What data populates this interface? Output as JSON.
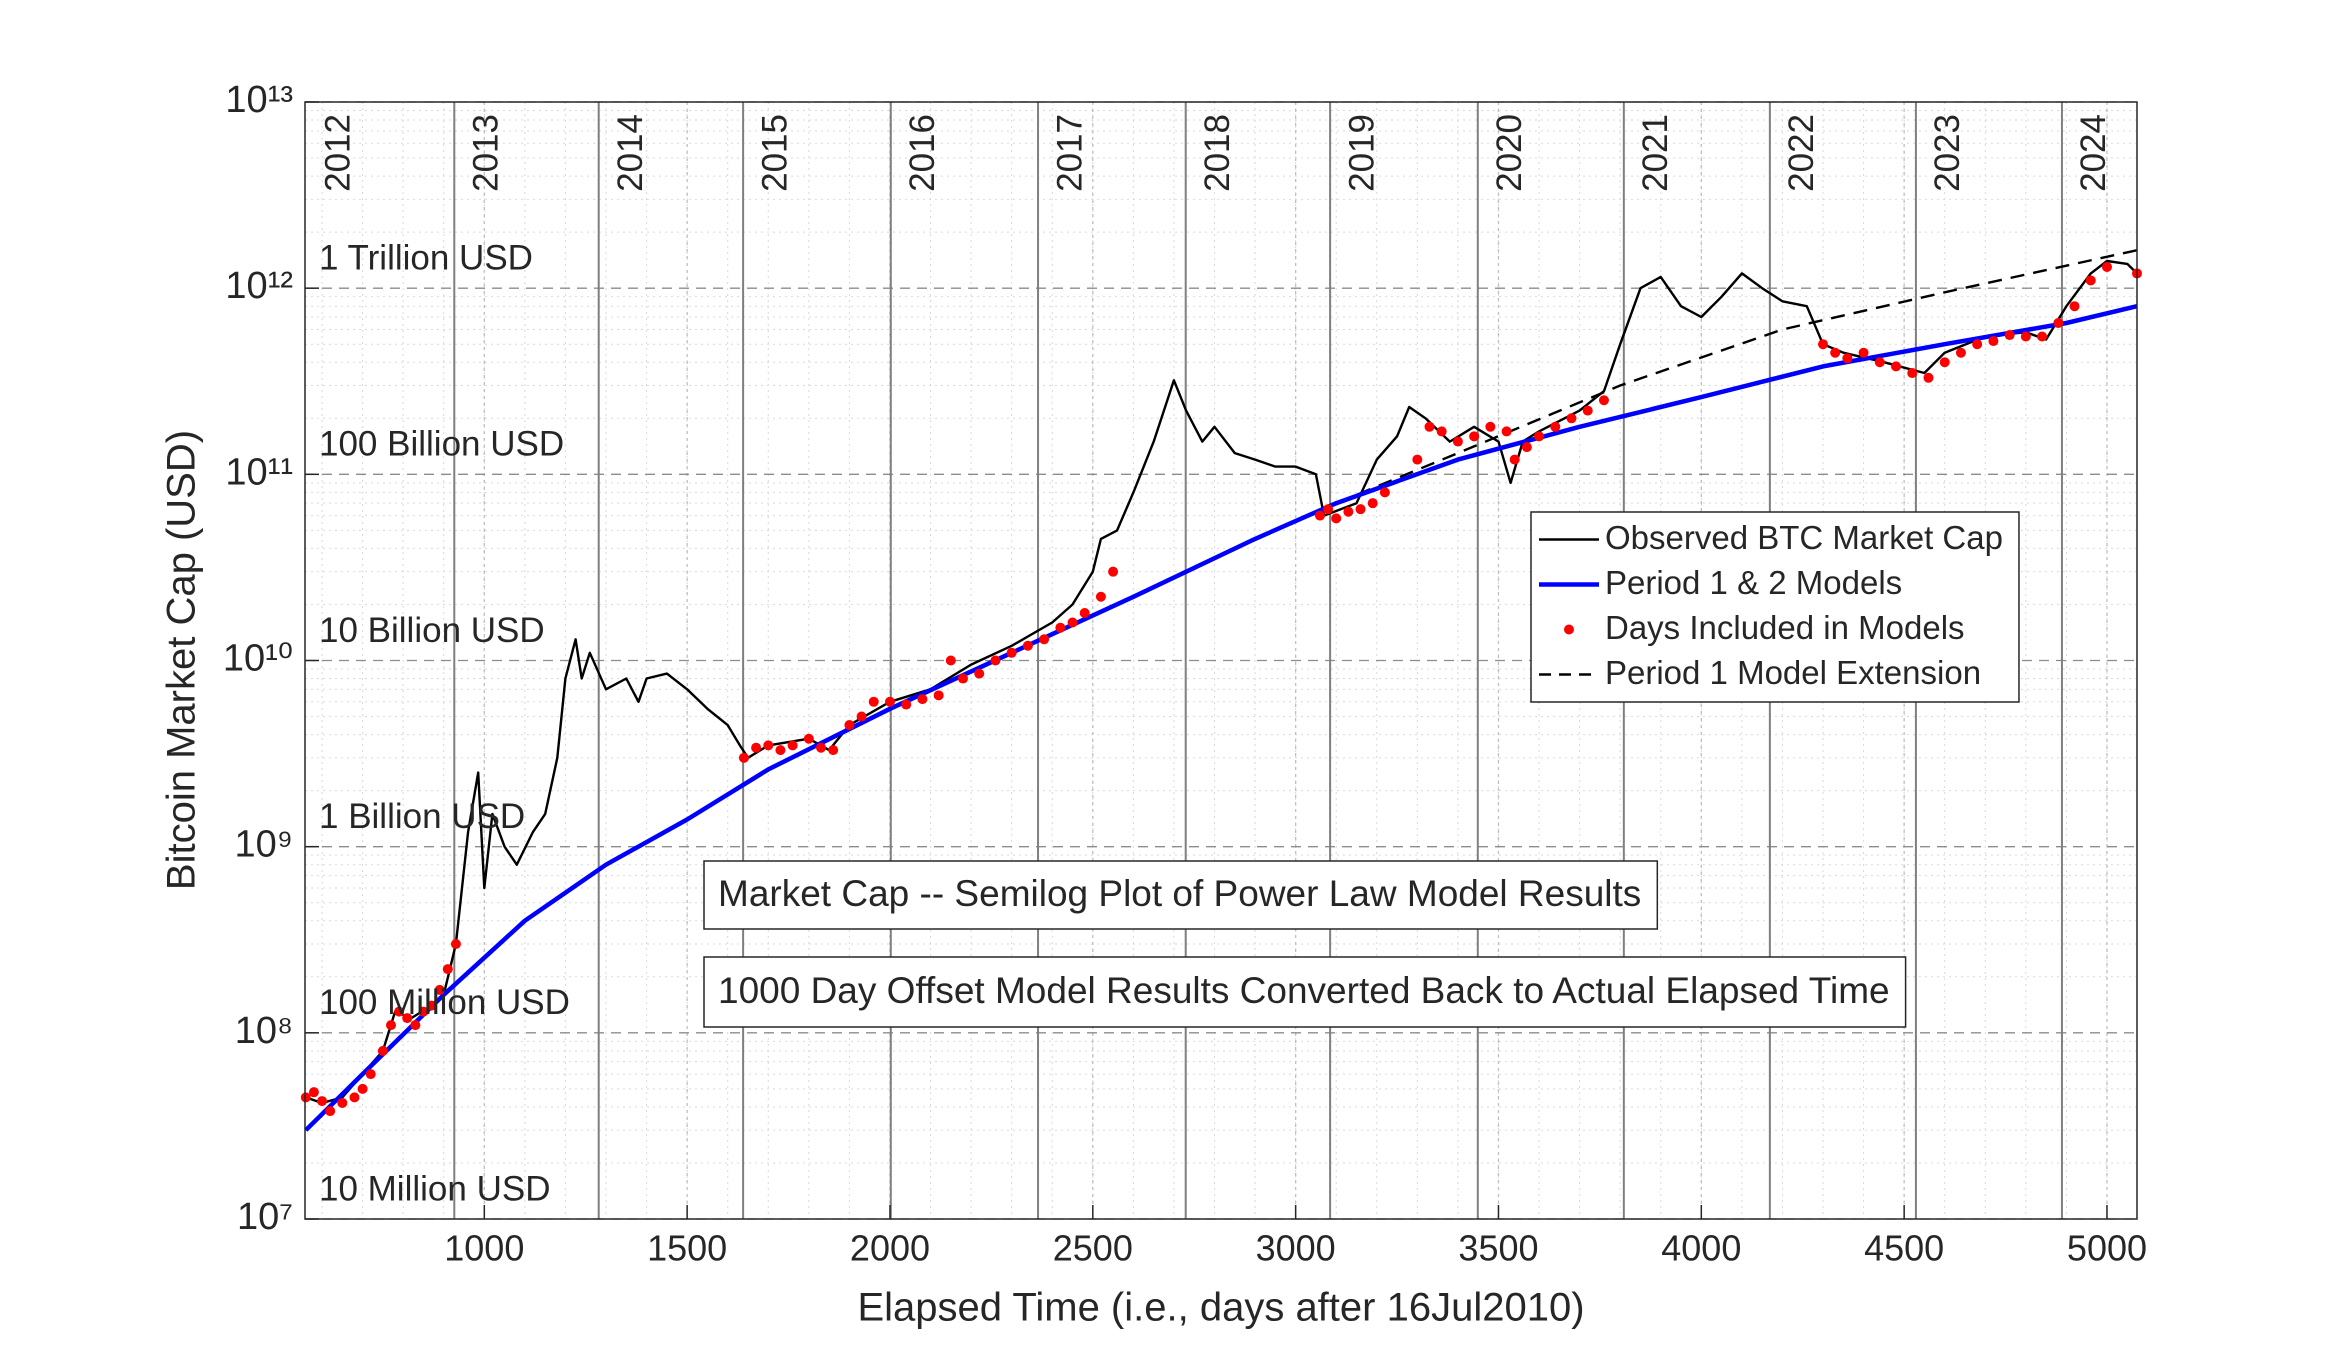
{
  "chart_data": {
    "type": "line",
    "xlabel": "Elapsed Time (i.e., days after 16Jul2010)",
    "ylabel": "Bitcoin Market Cap (USD)",
    "xlim": [
      558,
      5074
    ],
    "ylim": [
      10000000,
      10000000000000
    ],
    "yscale": "log",
    "grid": true,
    "minor_grid": true,
    "legend": "east",
    "xticks": [
      1000,
      1500,
      2000,
      2500,
      3000,
      3500,
      4000,
      4500,
      5000
    ],
    "yticks": [
      {
        "value": 10000000,
        "label": "10⁷"
      },
      {
        "value": 100000000,
        "label": "10⁸"
      },
      {
        "value": 1000000000,
        "label": "10⁹"
      },
      {
        "value": 10000000000,
        "label": "10¹⁰"
      },
      {
        "value": 100000000000,
        "label": "10¹¹"
      },
      {
        "value": 1000000000000,
        "label": "10¹²"
      },
      {
        "value": 10000000000000,
        "label": "10¹³"
      }
    ],
    "level_labels": [
      {
        "value": 10000000,
        "label": "10 Million USD"
      },
      {
        "value": 100000000,
        "label": "100 Million USD"
      },
      {
        "value": 1000000000,
        "label": "1 Billion USD"
      },
      {
        "value": 10000000000,
        "label": "10 Billion USD"
      },
      {
        "value": 100000000000,
        "label": "100 Billion USD"
      },
      {
        "value": 1000000000000,
        "label": "1 Trillion USD"
      }
    ],
    "year_lines": [
      {
        "value": 561,
        "label": "2012"
      },
      {
        "value": 926,
        "label": "2013"
      },
      {
        "value": 1282,
        "label": "2014"
      },
      {
        "value": 1638,
        "label": "2015"
      },
      {
        "value": 2002,
        "label": "2016"
      },
      {
        "value": 2365,
        "label": "2017"
      },
      {
        "value": 2729,
        "label": "2018"
      },
      {
        "value": 3085,
        "label": "2019"
      },
      {
        "value": 3449,
        "label": "2020"
      },
      {
        "value": 3809,
        "label": "2021"
      },
      {
        "value": 4169,
        "label": "2022"
      },
      {
        "value": 4529,
        "label": "2023"
      },
      {
        "value": 4889,
        "label": "2024"
      }
    ],
    "text_boxes": [
      "Market Cap -- Semilog Plot of Power Law Model Results",
      "1000 Day Offset Model Results Converted Back to Actual Elapsed Time"
    ],
    "series": [
      {
        "name": "Observed BTC Market Cap",
        "color": "#000000",
        "type": "line",
        "dash": false,
        "x": [
          560,
          600,
          650,
          700,
          750,
          780,
          820,
          870,
          900,
          930,
          960,
          985,
          1000,
          1020,
          1050,
          1080,
          1120,
          1150,
          1180,
          1200,
          1225,
          1240,
          1260,
          1300,
          1350,
          1380,
          1400,
          1450,
          1500,
          1550,
          1600,
          1630,
          1650,
          1700,
          1800,
          1850,
          1900,
          2000,
          2100,
          2200,
          2300,
          2400,
          2450,
          2500,
          2520,
          2560,
          2600,
          2650,
          2700,
          2730,
          2770,
          2800,
          2850,
          2900,
          2950,
          3000,
          3050,
          3070,
          3150,
          3200,
          3250,
          3280,
          3320,
          3380,
          3440,
          3500,
          3530,
          3560,
          3600,
          3700,
          3760,
          3800,
          3850,
          3900,
          3950,
          4000,
          4050,
          4100,
          4150,
          4200,
          4260,
          4300,
          4350,
          4450,
          4550,
          4600,
          4700,
          4800,
          4850,
          4900,
          4960,
          5000,
          5050,
          5074
        ],
        "values": [
          45000000.0,
          42000000.0,
          45000000.0,
          60000000.0,
          80000000.0,
          130000000.0,
          120000000.0,
          140000000.0,
          160000000.0,
          300000000.0,
          1200000000.0,
          2500000000.0,
          600000000.0,
          1500000000.0,
          1000000000.0,
          800000000.0,
          1200000000.0,
          1500000000.0,
          3000000000.0,
          8000000000.0,
          13000000000.0,
          8000000000.0,
          11000000000.0,
          7000000000.0,
          8000000000.0,
          6000000000.0,
          8000000000.0,
          8500000000.0,
          7000000000.0,
          5500000000.0,
          4500000000.0,
          3500000000.0,
          3000000000.0,
          3500000000.0,
          3800000000.0,
          3300000000.0,
          4500000000.0,
          6000000000.0,
          7000000000.0,
          9500000000.0,
          12000000000.0,
          16000000000.0,
          20000000000.0,
          30000000000.0,
          45000000000.0,
          50000000000.0,
          80000000000.0,
          150000000000.0,
          320000000000.0,
          220000000000.0,
          150000000000.0,
          180000000000.0,
          130000000000.0,
          120000000000.0,
          110000000000.0,
          110000000000.0,
          100000000000.0,
          60000000000.0,
          70000000000.0,
          120000000000.0,
          160000000000.0,
          230000000000.0,
          200000000000.0,
          150000000000.0,
          180000000000.0,
          150000000000.0,
          90000000000.0,
          150000000000.0,
          170000000000.0,
          220000000000.0,
          280000000000.0,
          500000000000.0,
          1000000000000.0,
          1150000000000.0,
          800000000000.0,
          700000000000.0,
          900000000000.0,
          1200000000000.0,
          1000000000000.0,
          850000000000.0,
          800000000000.0,
          500000000000.0,
          450000000000.0,
          400000000000.0,
          350000000000.0,
          450000000000.0,
          550000000000.0,
          580000000000.0,
          530000000000.0,
          800000000000.0,
          1200000000000.0,
          1400000000000.0,
          1350000000000.0,
          1200000000000.0
        ]
      },
      {
        "name": "Period 1 & 2 Models",
        "color": "#0000ff",
        "type": "line",
        "dash": false,
        "x": [
          560,
          700,
          900,
          1100,
          1300,
          1500,
          1700,
          2000,
          2300,
          2600,
          2900,
          3100,
          3400,
          3700,
          4000,
          4300,
          4600,
          4900,
          5074
        ],
        "values": [
          30000000.0,
          60000000.0,
          160000000.0,
          400000000.0,
          800000000.0,
          1400000000.0,
          2600000000.0,
          5500000000.0,
          11000000000.0,
          22000000000.0,
          45000000000.0,
          70000000000.0,
          120000000000.0,
          180000000000.0,
          260000000000.0,
          380000000000.0,
          500000000000.0,
          650000000000.0,
          800000000000.0
        ]
      },
      {
        "name": "Days Included in Models",
        "color": "#ff0000",
        "type": "scatter",
        "x": [
          560,
          580,
          600,
          620,
          650,
          680,
          700,
          720,
          750,
          770,
          790,
          810,
          830,
          850,
          870,
          890,
          910,
          930,
          1640,
          1670,
          1700,
          1730,
          1760,
          1800,
          1830,
          1860,
          1900,
          1930,
          1960,
          2000,
          2040,
          2080,
          2120,
          2150,
          2180,
          2220,
          2260,
          2300,
          2340,
          2380,
          2420,
          2450,
          2480,
          2520,
          2550,
          3060,
          3080,
          3100,
          3130,
          3160,
          3190,
          3220,
          3300,
          3330,
          3360,
          3400,
          3440,
          3480,
          3520,
          3540,
          3570,
          3600,
          3640,
          3680,
          3720,
          3760,
          4300,
          4330,
          4360,
          4400,
          4440,
          4480,
          4520,
          4560,
          4600,
          4640,
          4680,
          4720,
          4760,
          4800,
          4840,
          4880,
          4920,
          4960,
          5000,
          5074
        ],
        "values": [
          45000000.0,
          48000000.0,
          43000000.0,
          38000000.0,
          42000000.0,
          45000000.0,
          50000000.0,
          60000000.0,
          80000000.0,
          110000000.0,
          130000000.0,
          120000000.0,
          110000000.0,
          130000000.0,
          140000000.0,
          170000000.0,
          220000000.0,
          300000000.0,
          3000000000.0,
          3400000000.0,
          3500000000.0,
          3300000000.0,
          3500000000.0,
          3800000000.0,
          3400000000.0,
          3300000000.0,
          4500000000.0,
          5000000000.0,
          6000000000.0,
          6000000000.0,
          5800000000.0,
          6200000000.0,
          6500000000.0,
          10000000000.0,
          8000000000.0,
          8500000000.0,
          10000000000.0,
          11000000000.0,
          12000000000.0,
          13000000000.0,
          15000000000.0,
          16000000000.0,
          18000000000.0,
          22000000000.0,
          30000000000.0,
          60000000000.0,
          65000000000.0,
          58000000000.0,
          63000000000.0,
          65000000000.0,
          70000000000.0,
          80000000000.0,
          120000000000.0,
          180000000000.0,
          170000000000.0,
          150000000000.0,
          160000000000.0,
          180000000000.0,
          170000000000.0,
          120000000000.0,
          140000000000.0,
          160000000000.0,
          180000000000.0,
          200000000000.0,
          220000000000.0,
          250000000000.0,
          500000000000.0,
          450000000000.0,
          420000000000.0,
          450000000000.0,
          400000000000.0,
          380000000000.0,
          350000000000.0,
          330000000000.0,
          400000000000.0,
          450000000000.0,
          500000000000.0,
          520000000000.0,
          560000000000.0,
          550000000000.0,
          550000000000.0,
          650000000000.0,
          800000000000.0,
          1100000000000.0,
          1300000000000.0,
          1200000000000.0
        ]
      },
      {
        "name": "Period 1 Model Extension",
        "color": "#000000",
        "type": "line",
        "dash": true,
        "x": [
          3100,
          3400,
          3800,
          4200,
          4600,
          5074
        ],
        "values": [
          70000000000.0,
          130000000000.0,
          300000000000.0,
          600000000000.0,
          950000000000.0,
          1600000000000.0
        ]
      }
    ]
  }
}
